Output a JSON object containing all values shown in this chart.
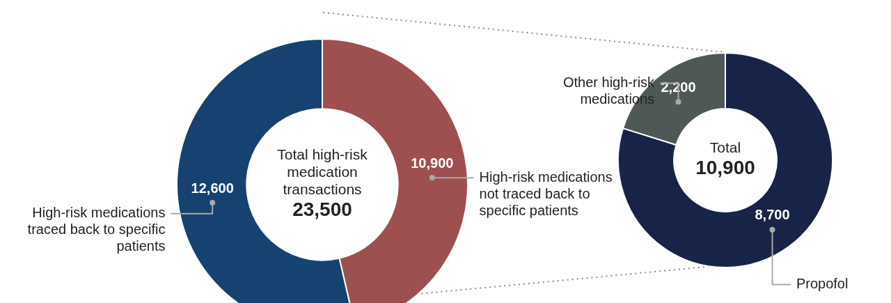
{
  "chart_data": [
    {
      "type": "donut",
      "categories": [
        "High-risk medications not traced back to specific patients",
        "High-risk medications traced back to specific patients"
      ],
      "values": [
        10900,
        12600
      ],
      "colors": [
        "#9e4f4f",
        "#154270"
      ],
      "value_labels": [
        "10,900",
        "12,600"
      ],
      "annotations": [
        "Total high-risk medication transactions",
        "23,500"
      ]
    },
    {
      "type": "donut",
      "categories": [
        "Propofol",
        "Other high-risk medications"
      ],
      "values": [
        8700,
        2200
      ],
      "colors": [
        "#172447",
        "#4f5856"
      ],
      "value_labels": [
        "8,700",
        "2,200"
      ],
      "annotations": [
        "Total",
        "10,900"
      ]
    }
  ]
}
